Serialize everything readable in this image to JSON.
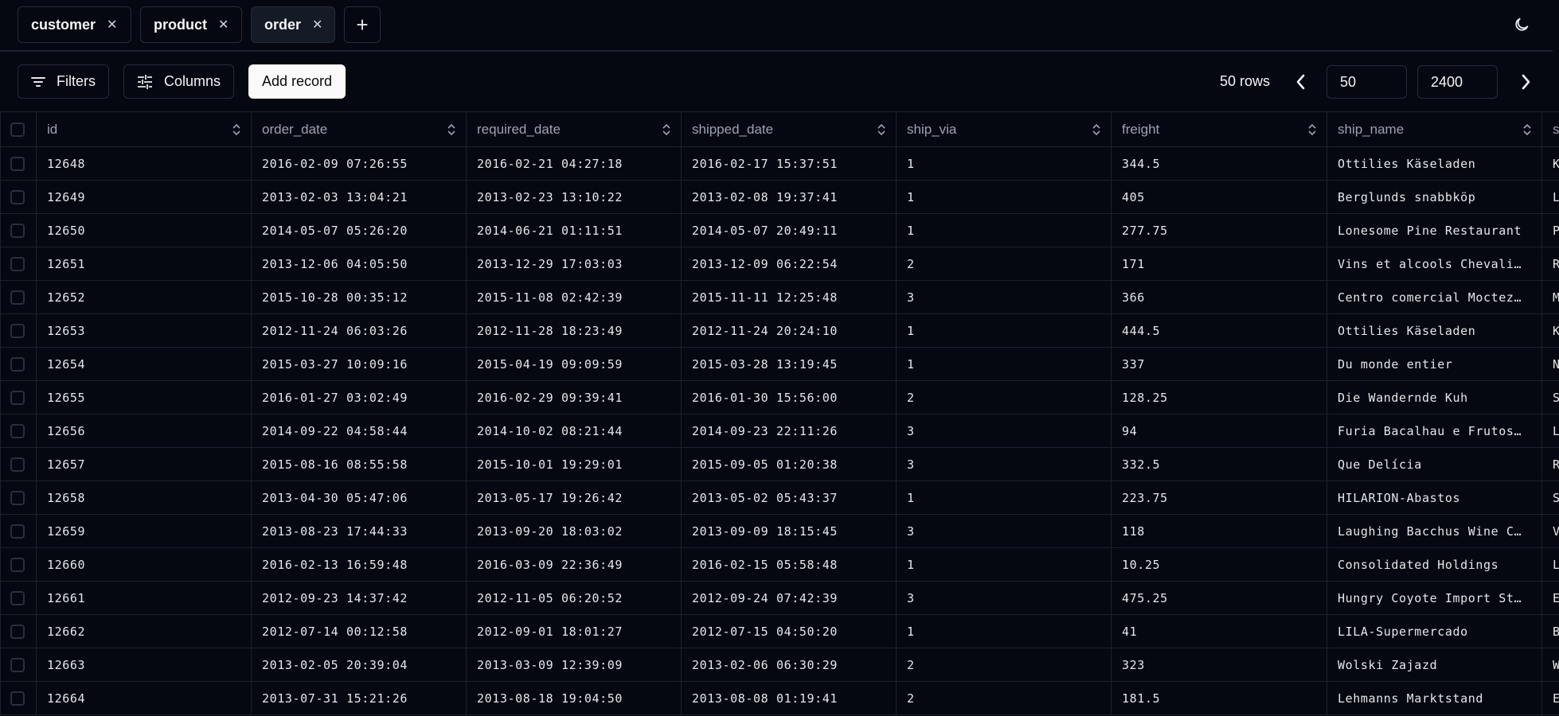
{
  "tabs": [
    {
      "label": "customer",
      "active": false
    },
    {
      "label": "product",
      "active": false
    },
    {
      "label": "order",
      "active": true
    }
  ],
  "icons": {
    "close": "x-icon",
    "add_tab": "plus-icon",
    "theme": "moon-icon",
    "filters": "filter-lines-icon",
    "columns": "sliders-icon",
    "prev": "chevron-left-icon",
    "next": "chevron-right-icon",
    "sort": "chevron-up-down-icon"
  },
  "toolbar": {
    "filters": "Filters",
    "columns": "Columns",
    "add_record": "Add record",
    "row_count": "50 rows",
    "limit": "50",
    "offset": "2400"
  },
  "table": {
    "columns": [
      "id",
      "order_date",
      "required_date",
      "shipped_date",
      "ship_via",
      "freight",
      "ship_name",
      "s"
    ],
    "rows": [
      [
        "12648",
        "2016-02-09 07:26:55",
        "2016-02-21 04:27:18",
        "2016-02-17 15:37:51",
        "1",
        "344.5",
        "Ottilies Käseladen",
        "K"
      ],
      [
        "12649",
        "2013-02-03 13:04:21",
        "2013-02-23 13:10:22",
        "2013-02-08 19:37:41",
        "1",
        "405",
        "Berglunds snabbköp",
        "L"
      ],
      [
        "12650",
        "2014-05-07 05:26:20",
        "2014-06-21 01:11:51",
        "2014-05-07 20:49:11",
        "1",
        "277.75",
        "Lonesome Pine Restaurant",
        "P"
      ],
      [
        "12651",
        "2013-12-06 04:05:50",
        "2013-12-29 17:03:03",
        "2013-12-09 06:22:54",
        "2",
        "171",
        "Vins et alcools Chevali…",
        "R"
      ],
      [
        "12652",
        "2015-10-28 00:35:12",
        "2015-11-08 02:42:39",
        "2015-11-11 12:25:48",
        "3",
        "366",
        "Centro comercial Moctez…",
        "M"
      ],
      [
        "12653",
        "2012-11-24 06:03:26",
        "2012-11-28 18:23:49",
        "2012-11-24 20:24:10",
        "1",
        "444.5",
        "Ottilies Käseladen",
        "K"
      ],
      [
        "12654",
        "2015-03-27 10:09:16",
        "2015-04-19 09:09:59",
        "2015-03-28 13:19:45",
        "1",
        "337",
        "Du monde entier",
        "N"
      ],
      [
        "12655",
        "2016-01-27 03:02:49",
        "2016-02-29 09:39:41",
        "2016-01-30 15:56:00",
        "2",
        "128.25",
        "Die Wandernde Kuh",
        "S"
      ],
      [
        "12656",
        "2014-09-22 04:58:44",
        "2014-10-02 08:21:44",
        "2014-09-23 22:11:26",
        "3",
        "94",
        "Furia Bacalhau e Frutos…",
        "L"
      ],
      [
        "12657",
        "2015-08-16 08:55:58",
        "2015-10-01 19:29:01",
        "2015-09-05 01:20:38",
        "3",
        "332.5",
        "Que Delícia",
        "R"
      ],
      [
        "12658",
        "2013-04-30 05:47:06",
        "2013-05-17 19:26:42",
        "2013-05-02 05:43:37",
        "1",
        "223.75",
        "HILARION-Abastos",
        "S"
      ],
      [
        "12659",
        "2013-08-23 17:44:33",
        "2013-09-20 18:03:02",
        "2013-09-09 18:15:45",
        "3",
        "118",
        "Laughing Bacchus Wine C…",
        "V"
      ],
      [
        "12660",
        "2016-02-13 16:59:48",
        "2016-03-09 22:36:49",
        "2016-02-15 05:58:48",
        "1",
        "10.25",
        "Consolidated Holdings",
        "L"
      ],
      [
        "12661",
        "2012-09-23 14:37:42",
        "2012-11-05 06:20:52",
        "2012-09-24 07:42:39",
        "3",
        "475.25",
        "Hungry Coyote Import St…",
        "E"
      ],
      [
        "12662",
        "2012-07-14 00:12:58",
        "2012-09-01 18:01:27",
        "2012-07-15 04:50:20",
        "1",
        "41",
        "LILA-Supermercado",
        "B"
      ],
      [
        "12663",
        "2013-02-05 20:39:04",
        "2013-03-09 12:39:09",
        "2013-02-06 06:30:29",
        "2",
        "323",
        "Wolski Zajazd",
        "W"
      ],
      [
        "12664",
        "2013-07-31 15:21:26",
        "2013-08-18 19:04:50",
        "2013-08-08 01:19:41",
        "2",
        "181.5",
        "Lehmanns Marktstand",
        "E"
      ]
    ]
  }
}
